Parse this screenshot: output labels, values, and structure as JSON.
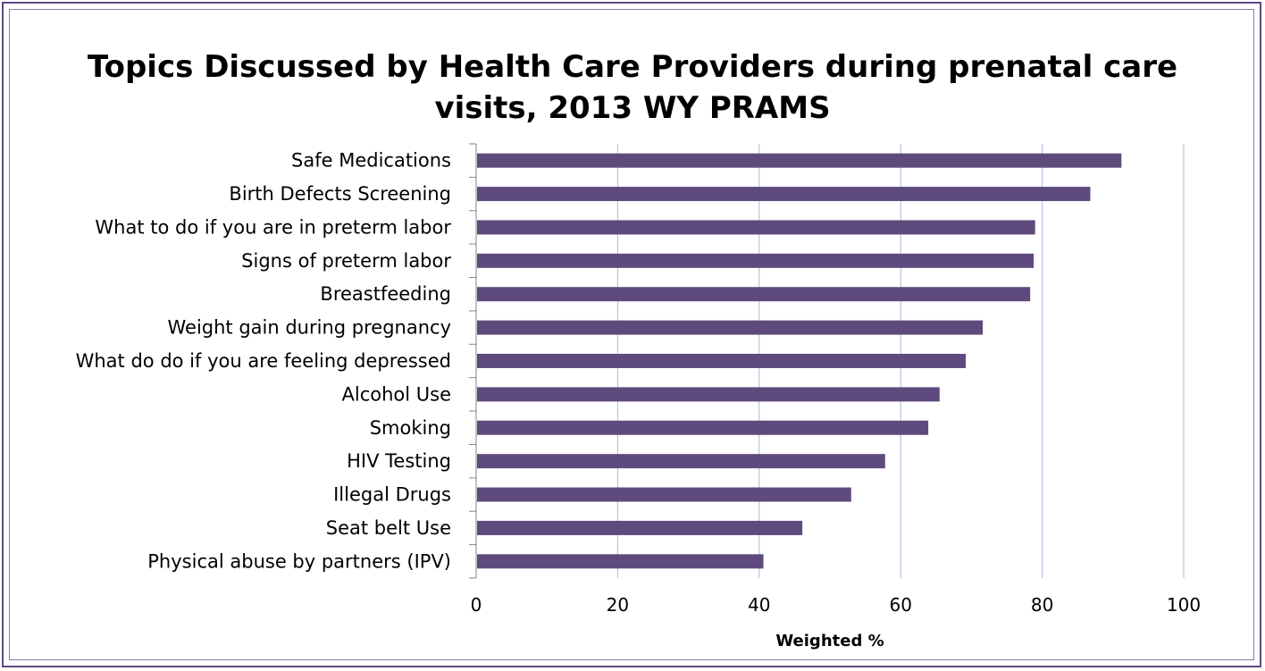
{
  "chart_data": {
    "type": "bar",
    "orientation": "horizontal",
    "title_line1": "Topics Discussed by Health Care Providers during prenatal care",
    "title_line2": "visits, 2013 WY PRAMS",
    "xlabel": "Weighted %",
    "ylabel": "",
    "xlim": [
      0,
      100
    ],
    "xticks": [
      "0",
      "20",
      "40",
      "60",
      "80",
      "100"
    ],
    "grid": "vertical",
    "legend": "none",
    "bar_color": "#5f4a7d",
    "gridline_color": "#a9bad8",
    "categories": [
      "Safe Medications",
      "Birth Defects Screening",
      "What to do if you are in preterm labor",
      "Signs of preterm labor",
      "Breastfeeding",
      "Weight gain during pregnancy",
      "What do do if you are feeling depressed",
      "Alcohol Use",
      "Smoking",
      "HIV Testing",
      "Illegal Drugs",
      "Seat belt Use",
      "Physical abuse by partners (IPV)"
    ],
    "values": [
      91.2,
      86.8,
      79.0,
      78.8,
      78.3,
      71.6,
      69.2,
      65.5,
      63.9,
      57.8,
      53.0,
      46.1,
      40.6
    ]
  }
}
